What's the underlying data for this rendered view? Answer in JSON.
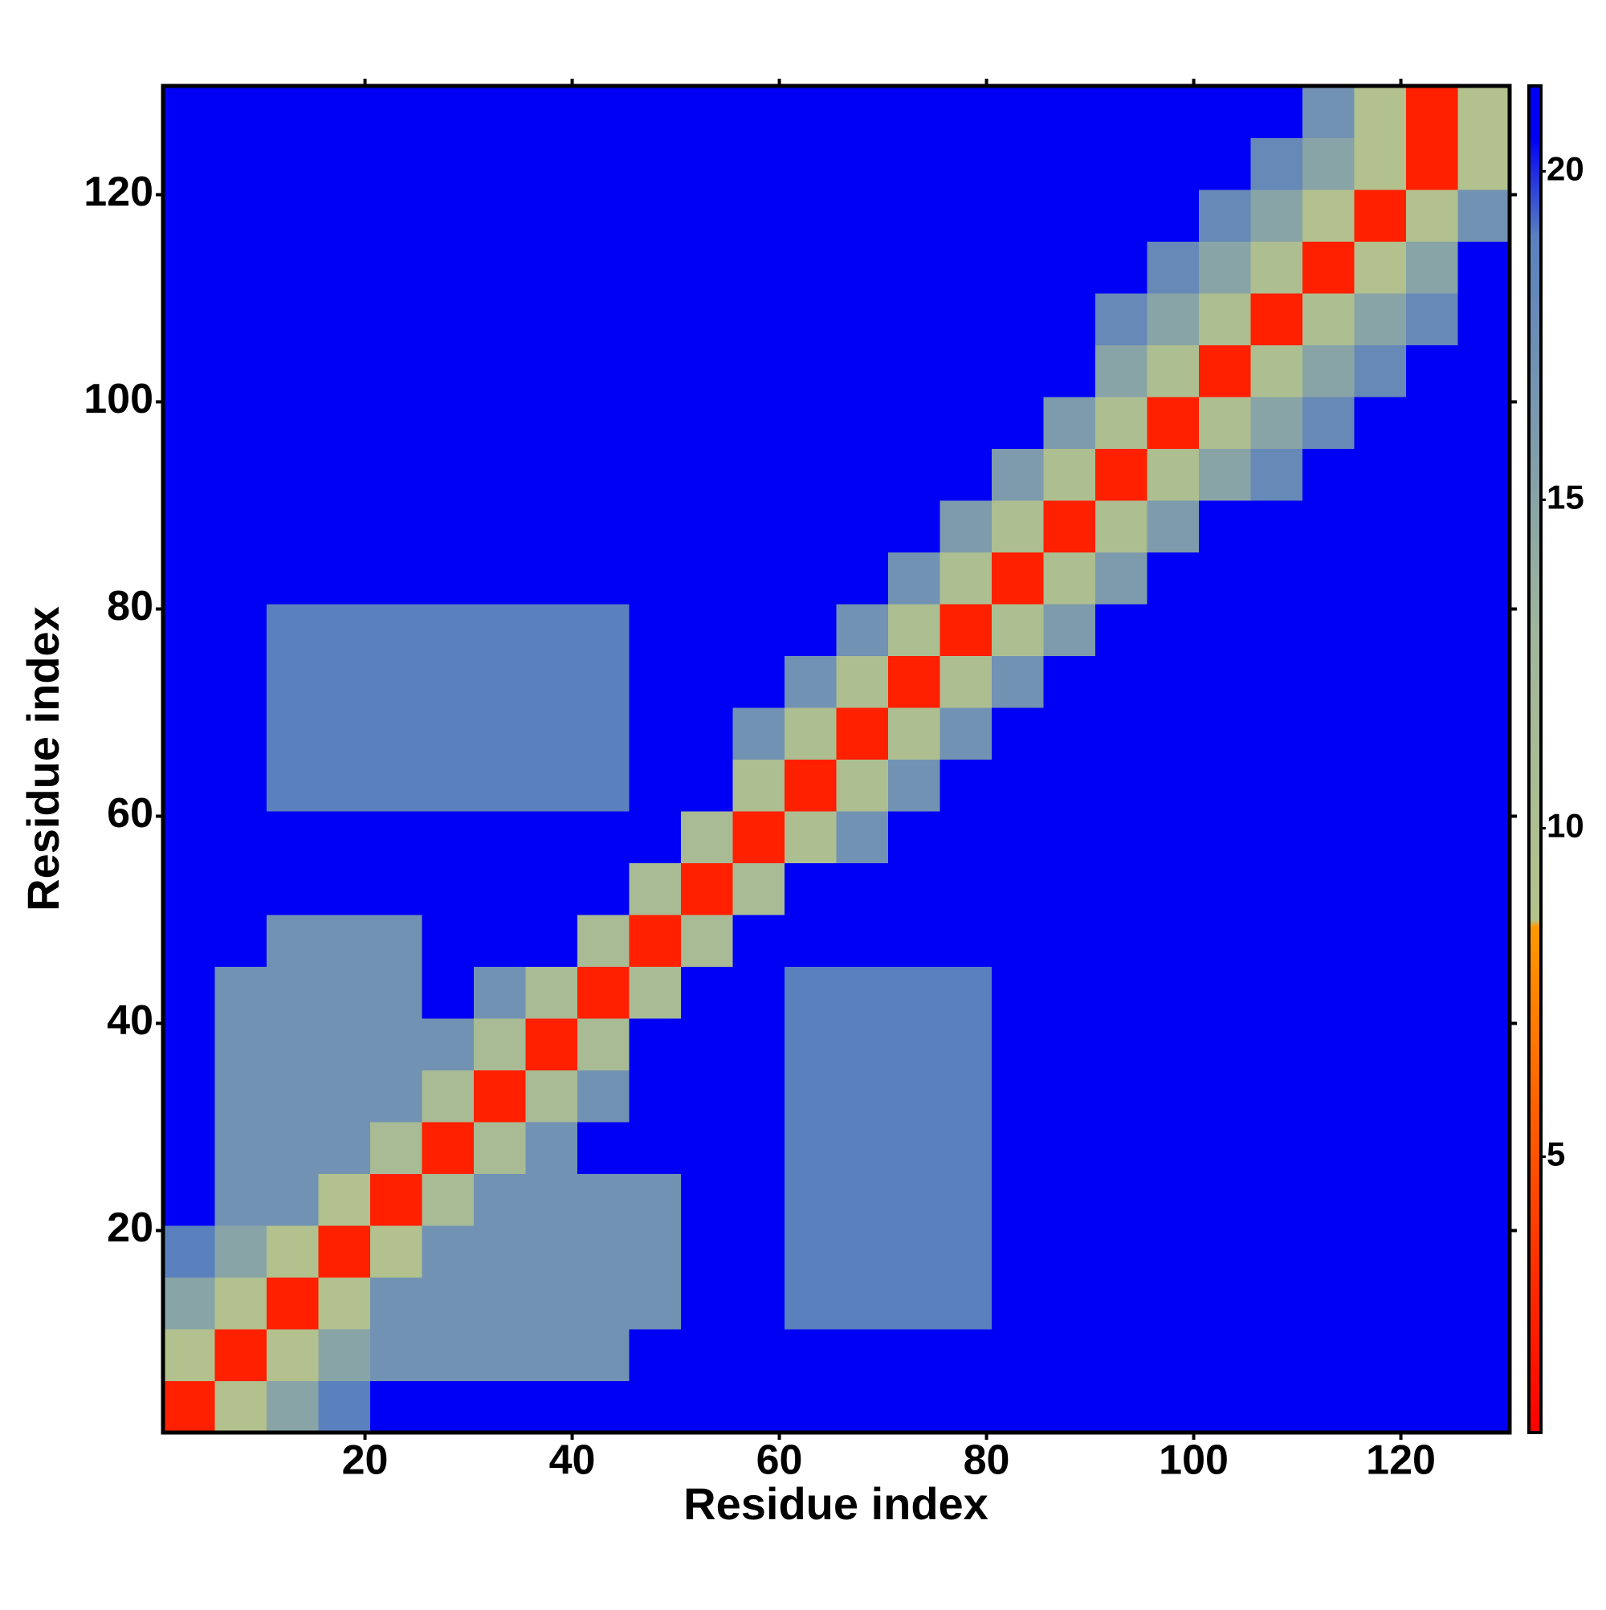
{
  "chart_data": {
    "type": "heatmap",
    "xlabel": "Residue index",
    "ylabel": "Residue index",
    "x": [
      3,
      8,
      13,
      18,
      23,
      28,
      33,
      38,
      43,
      48,
      53,
      58,
      63,
      68,
      73,
      78,
      83,
      88,
      93,
      98,
      103,
      108,
      113,
      118,
      123,
      128
    ],
    "y": [
      3,
      8,
      13,
      18,
      23,
      28,
      33,
      38,
      43,
      48,
      53,
      58,
      63,
      68,
      73,
      78,
      83,
      88,
      93,
      98,
      103,
      108,
      113,
      118,
      123,
      128
    ],
    "z": [
      [
        2.5,
        9,
        15,
        19,
        21,
        21,
        21,
        21,
        21,
        21,
        21,
        21,
        21,
        21,
        21,
        21,
        21,
        21,
        21,
        21,
        21,
        21,
        21,
        21,
        21,
        21
      ],
      [
        9,
        2.5,
        9,
        15,
        17,
        17,
        17,
        17,
        17,
        21,
        21,
        21,
        21,
        21,
        21,
        21,
        21,
        21,
        21,
        21,
        21,
        21,
        21,
        21,
        21,
        21
      ],
      [
        15,
        9,
        2.5,
        9,
        17,
        17,
        17,
        17,
        17,
        17,
        21,
        21,
        19,
        19,
        19,
        19,
        21,
        21,
        21,
        21,
        21,
        21,
        21,
        21,
        21,
        21
      ],
      [
        19,
        15,
        9,
        2.5,
        9,
        17,
        17,
        17,
        17,
        17,
        21,
        21,
        19,
        19,
        19,
        19,
        21,
        21,
        21,
        21,
        21,
        21,
        21,
        21,
        21,
        21
      ],
      [
        21,
        17,
        17,
        9,
        2.5,
        11,
        17,
        17,
        17,
        17,
        21,
        21,
        19,
        19,
        19,
        19,
        21,
        21,
        21,
        21,
        21,
        21,
        21,
        21,
        21,
        21
      ],
      [
        21,
        17,
        17,
        17,
        11,
        2.5,
        11,
        17,
        21,
        21,
        21,
        21,
        19,
        19,
        19,
        19,
        21,
        21,
        21,
        21,
        21,
        21,
        21,
        21,
        21,
        21
      ],
      [
        21,
        17,
        17,
        17,
        17,
        11,
        2.5,
        11,
        17,
        21,
        21,
        21,
        19,
        19,
        19,
        19,
        21,
        21,
        21,
        21,
        21,
        21,
        21,
        21,
        21,
        21
      ],
      [
        21,
        17,
        17,
        17,
        17,
        17,
        11,
        2.5,
        11,
        21,
        21,
        21,
        19,
        19,
        19,
        19,
        21,
        21,
        21,
        21,
        21,
        21,
        21,
        21,
        21,
        21
      ],
      [
        21,
        17,
        17,
        17,
        17,
        21,
        17,
        11,
        2.5,
        11,
        21,
        21,
        19,
        19,
        19,
        19,
        21,
        21,
        21,
        21,
        21,
        21,
        21,
        21,
        21,
        21
      ],
      [
        21,
        21,
        17,
        17,
        17,
        21,
        21,
        21,
        11,
        2.5,
        11,
        21,
        21,
        21,
        21,
        21,
        21,
        21,
        21,
        21,
        21,
        21,
        21,
        21,
        21,
        21
      ],
      [
        21,
        21,
        21,
        21,
        21,
        21,
        21,
        21,
        21,
        11,
        2.5,
        11,
        21,
        21,
        21,
        21,
        21,
        21,
        21,
        21,
        21,
        21,
        21,
        21,
        21,
        21
      ],
      [
        21,
        21,
        21,
        21,
        21,
        21,
        21,
        21,
        21,
        21,
        11,
        2.5,
        10,
        17,
        21,
        21,
        21,
        21,
        21,
        21,
        21,
        21,
        21,
        21,
        21,
        21
      ],
      [
        21,
        21,
        19,
        19,
        19,
        19,
        19,
        19,
        19,
        21,
        21,
        10,
        2.5,
        10,
        17,
        21,
        21,
        21,
        21,
        21,
        21,
        21,
        21,
        21,
        21,
        21
      ],
      [
        21,
        21,
        19,
        19,
        19,
        19,
        19,
        19,
        19,
        21,
        21,
        17,
        10,
        2.5,
        10,
        17,
        21,
        21,
        21,
        21,
        21,
        21,
        21,
        21,
        21,
        21
      ],
      [
        21,
        21,
        19,
        19,
        19,
        19,
        19,
        19,
        19,
        21,
        21,
        21,
        17,
        10,
        2.5,
        10,
        17,
        21,
        21,
        21,
        21,
        21,
        21,
        21,
        21,
        21
      ],
      [
        21,
        21,
        19,
        19,
        19,
        19,
        19,
        19,
        19,
        21,
        21,
        21,
        21,
        17,
        10,
        2.5,
        10,
        16,
        21,
        21,
        21,
        21,
        21,
        21,
        21,
        21
      ],
      [
        21,
        21,
        21,
        21,
        21,
        21,
        21,
        21,
        21,
        21,
        21,
        21,
        21,
        21,
        17,
        10,
        2.5,
        10,
        16,
        21,
        21,
        21,
        21,
        21,
        21,
        21
      ],
      [
        21,
        21,
        21,
        21,
        21,
        21,
        21,
        21,
        21,
        21,
        21,
        21,
        21,
        21,
        21,
        16,
        10,
        2.5,
        10,
        16,
        21,
        21,
        21,
        21,
        21,
        21
      ],
      [
        21,
        21,
        21,
        21,
        21,
        21,
        21,
        21,
        21,
        21,
        21,
        21,
        21,
        21,
        21,
        21,
        16,
        10,
        2.5,
        10,
        15,
        18,
        21,
        21,
        21,
        21
      ],
      [
        21,
        21,
        21,
        21,
        21,
        21,
        21,
        21,
        21,
        21,
        21,
        21,
        21,
        21,
        21,
        21,
        21,
        16,
        10,
        2.5,
        10,
        15,
        18,
        21,
        21,
        21
      ],
      [
        21,
        21,
        21,
        21,
        21,
        21,
        21,
        21,
        21,
        21,
        21,
        21,
        21,
        21,
        21,
        21,
        21,
        21,
        15,
        10,
        2.5,
        10,
        15,
        18,
        21,
        21
      ],
      [
        21,
        21,
        21,
        21,
        21,
        21,
        21,
        21,
        21,
        21,
        21,
        21,
        21,
        21,
        21,
        21,
        21,
        21,
        18,
        15,
        10,
        2.5,
        10,
        15,
        18,
        21
      ],
      [
        21,
        21,
        21,
        21,
        21,
        21,
        21,
        21,
        21,
        21,
        21,
        21,
        21,
        21,
        21,
        21,
        21,
        21,
        21,
        18,
        15,
        10,
        2.5,
        9,
        15,
        21
      ],
      [
        21,
        21,
        21,
        21,
        21,
        21,
        21,
        21,
        21,
        21,
        21,
        21,
        21,
        21,
        21,
        21,
        21,
        21,
        21,
        21,
        18,
        15,
        9,
        2.5,
        9,
        17
      ],
      [
        21,
        21,
        21,
        21,
        21,
        21,
        21,
        21,
        21,
        21,
        21,
        21,
        21,
        21,
        21,
        21,
        21,
        21,
        21,
        21,
        21,
        18,
        15,
        9,
        2.5,
        9
      ],
      [
        21,
        21,
        21,
        21,
        21,
        21,
        21,
        21,
        21,
        21,
        21,
        21,
        21,
        21,
        21,
        21,
        21,
        21,
        21,
        21,
        21,
        21,
        17,
        9,
        2.5,
        9
      ]
    ],
    "xlim": [
      0.5,
      130.5
    ],
    "ylim": [
      0.5,
      130.5
    ],
    "xticks": [
      20,
      40,
      60,
      80,
      100,
      120
    ],
    "yticks": [
      20,
      40,
      60,
      80,
      100,
      120
    ],
    "zlim": [
      0.8,
      21.3
    ],
    "zticks": [
      5,
      10,
      15,
      20
    ],
    "colorscale": [
      [
        0.8,
        "#ff0000"
      ],
      [
        3,
        "#ff2a00"
      ],
      [
        8.5,
        "#ff9900"
      ],
      [
        8.6,
        "#b4c28c"
      ],
      [
        13,
        "#9fb69c"
      ],
      [
        19,
        "#5b80be"
      ],
      [
        20.5,
        "#0000f5"
      ],
      [
        21.3,
        "#0000f5"
      ]
    ]
  }
}
